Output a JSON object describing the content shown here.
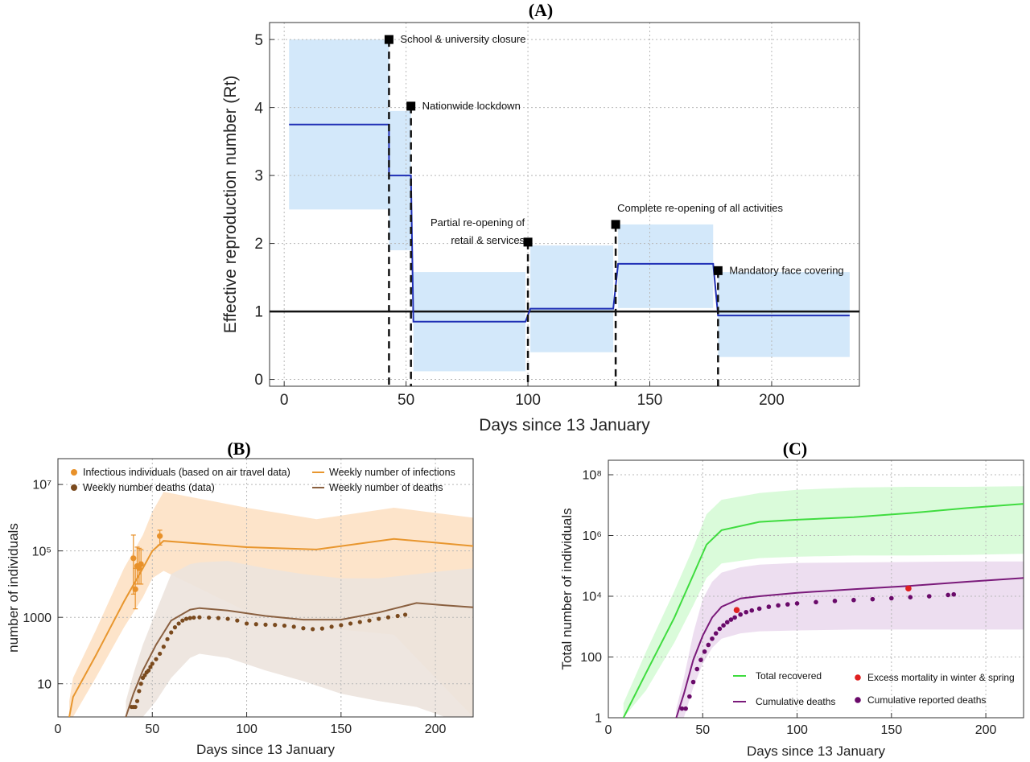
{
  "chart_data": [
    {
      "panel": "(A)",
      "type": "line",
      "xlabel": "Days since 13 January",
      "ylabel": "Effective reproduction number (Rt)",
      "xlim": [
        -6,
        236
      ],
      "ylim": [
        -0.1,
        5.25
      ],
      "xticks": [
        0,
        50,
        100,
        150,
        200
      ],
      "yticks": [
        0,
        1,
        2,
        3,
        4,
        5
      ],
      "grid": true,
      "threshold": 1,
      "colors": {
        "rt": "#1f2fb5",
        "band": "#d3e8fa",
        "threshold": "#111111",
        "markers": "#000000"
      },
      "rt_steps": [
        {
          "x0": 2,
          "x1": 43,
          "rt": 3.75,
          "lo": 2.5,
          "hi": 5.0
        },
        {
          "x0": 43,
          "x1": 52,
          "rt": 3.0,
          "lo": 1.9,
          "hi": 3.95
        },
        {
          "x0": 53,
          "x1": 99,
          "rt": 0.85,
          "lo": 0.12,
          "hi": 1.58
        },
        {
          "x0": 101,
          "x1": 135,
          "rt": 1.04,
          "lo": 0.4,
          "hi": 1.97
        },
        {
          "x0": 137,
          "x1": 176,
          "rt": 1.7,
          "lo": 1.05,
          "hi": 2.28
        },
        {
          "x0": 178,
          "x1": 232,
          "rt": 0.94,
          "lo": 0.33,
          "hi": 1.58
        }
      ],
      "interventions": [
        {
          "day": 43,
          "label_lines": [
            "School & university closure"
          ],
          "marker_y": 5.0,
          "label_pos": "right"
        },
        {
          "day": 52,
          "label_lines": [
            "Nationwide lockdown"
          ],
          "marker_y": 4.02,
          "label_pos": "right"
        },
        {
          "day": 100,
          "label_lines": [
            "Partial re-opening of",
            "retail & services"
          ],
          "marker_y": 2.02,
          "label_pos": "left"
        },
        {
          "day": 136,
          "label_lines": [
            "Complete re-opening of all activities"
          ],
          "marker_y": 2.28,
          "label_pos": "above"
        },
        {
          "day": 178,
          "label_lines": [
            "Mandatory face covering"
          ],
          "marker_y": 1.6,
          "label_pos": "right"
        }
      ]
    },
    {
      "panel": "(B)",
      "type": "line",
      "xlabel": "Days since 13 January",
      "ylabel": "number of individuals",
      "yscale": "log",
      "xlim": [
        0,
        220
      ],
      "ylim": [
        1,
        60000000
      ],
      "xticks": [
        0,
        50,
        100,
        150,
        200
      ],
      "yticks": [
        10,
        1000,
        100000,
        10000000
      ],
      "ytick_labels": [
        "10",
        "1000",
        "10⁵",
        "10⁷"
      ],
      "grid": true,
      "legend_position": "top-left",
      "legend": [
        {
          "label": "Infectious individuals (based on air travel data)",
          "kind": "dot",
          "color": "#e8912a"
        },
        {
          "label": "Weekly number deaths (data)",
          "kind": "dot",
          "color": "#7a4a1e"
        },
        {
          "label": "Weekly number of infections",
          "kind": "line",
          "color": "#e8962e"
        },
        {
          "label": "Weekly number of deaths",
          "kind": "line",
          "color": "#8a6040"
        }
      ],
      "series": [
        {
          "name": "Weekly number of infections",
          "color": "#e8962e",
          "x": [
            6,
            8,
            20,
            35,
            45,
            50,
            56,
            100,
            137,
            178,
            220
          ],
          "y": [
            1,
            4,
            70,
            3000,
            30000,
            100000,
            200000,
            130000,
            110000,
            230000,
            140000
          ],
          "band_lo": [
            1,
            1,
            15,
            500,
            4000,
            15000,
            25000,
            1500,
            500,
            300,
            1
          ],
          "band_hi": [
            3,
            15,
            400,
            30000,
            300000,
            1500000,
            6000000,
            2000000,
            900000,
            2000000,
            1000000
          ]
        },
        {
          "name": "Weekly number of deaths",
          "color": "#8a6040",
          "x": [
            36,
            40,
            45,
            52,
            60,
            70,
            75,
            90,
            110,
            130,
            150,
            170,
            190,
            205,
            220
          ],
          "y": [
            1,
            5,
            25,
            150,
            800,
            1700,
            1900,
            1600,
            1100,
            850,
            850,
            1400,
            2700,
            2300,
            2000
          ],
          "band_lo": [
            1,
            1,
            1,
            3,
            15,
            60,
            80,
            60,
            25,
            12,
            5,
            3,
            2,
            1,
            1
          ],
          "band_hi": [
            3,
            20,
            150,
            1500,
            20000,
            40000,
            45000,
            50000,
            30000,
            20000,
            15000,
            15000,
            20000,
            25000,
            30000
          ]
        }
      ],
      "points": [
        {
          "name": "Infectious individuals (based on air travel data)",
          "color": "#e8912a",
          "x": [
            40,
            41,
            42,
            43,
            44,
            54
          ],
          "y": [
            60000,
            7000,
            35000,
            30000,
            40000,
            280000
          ],
          "err_lo": [
            5000,
            1800,
            10000,
            10000,
            10000,
            150000
          ],
          "err_hi": [
            300000,
            30000,
            130000,
            120000,
            110000,
            420000
          ]
        },
        {
          "name": "Weekly number deaths (data)",
          "color": "#7a4a1e",
          "x": [
            39,
            40,
            41,
            42,
            43,
            44,
            45,
            46,
            47,
            48,
            49,
            50,
            52,
            54,
            56,
            58,
            60,
            62,
            64,
            66,
            68,
            70,
            72,
            75,
            80,
            85,
            90,
            95,
            100,
            105,
            110,
            115,
            120,
            125,
            130,
            135,
            140,
            145,
            150,
            155,
            160,
            165,
            170,
            175,
            180,
            184
          ],
          "y": [
            2,
            2,
            2,
            3,
            6,
            10,
            15,
            18,
            22,
            25,
            32,
            40,
            55,
            80,
            130,
            220,
            350,
            500,
            650,
            800,
            900,
            950,
            980,
            1000,
            980,
            950,
            900,
            800,
            650,
            620,
            600,
            590,
            560,
            520,
            470,
            440,
            460,
            520,
            580,
            650,
            720,
            800,
            900,
            1000,
            1100,
            1200
          ]
        }
      ]
    },
    {
      "panel": "(C)",
      "type": "line",
      "xlabel": "Days since 13 January",
      "ylabel": "Total number of individuals",
      "yscale": "log",
      "xlim": [
        0,
        220
      ],
      "ylim": [
        1,
        300000000
      ],
      "xticks": [
        0,
        50,
        100,
        150,
        200
      ],
      "yticks": [
        1,
        100,
        10000,
        1000000,
        100000000
      ],
      "ytick_labels": [
        "1",
        "100",
        "10⁴",
        "10⁶",
        "10⁸"
      ],
      "grid": true,
      "legend_position": "bottom-right",
      "legend": [
        {
          "label": "Total recovered",
          "kind": "line",
          "color": "#3fdc3f"
        },
        {
          "label": "Excess mortality in winter & spring",
          "kind": "dot",
          "color": "#e02020"
        },
        {
          "label": "Cumulative deaths",
          "kind": "line",
          "color": "#7a1a7a"
        },
        {
          "label": "Cumulative reported deaths",
          "kind": "dot",
          "color": "#6a0a6a"
        }
      ],
      "series": [
        {
          "name": "Total recovered",
          "color": "#3fdc3f",
          "x": [
            8,
            20,
            35,
            45,
            52,
            60,
            80,
            100,
            130,
            160,
            190,
            220
          ],
          "y": [
            1,
            30,
            2000,
            50000,
            500000,
            1500000,
            2800000,
            3300000,
            4000000,
            5500000,
            8000000,
            11000000
          ],
          "band_lo": [
            1,
            8,
            300,
            5000,
            40000,
            120000,
            180000,
            200000,
            220000,
            220000,
            230000,
            250000
          ],
          "band_hi": [
            3,
            150,
            15000,
            400000,
            5000000,
            15000000,
            25000000,
            32000000,
            38000000,
            40000000,
            40000000,
            42000000
          ]
        },
        {
          "name": "Cumulative deaths",
          "color": "#7a1a7a",
          "x": [
            36,
            40,
            45,
            50,
            55,
            60,
            70,
            80,
            100,
            130,
            160,
            190,
            220
          ],
          "y": [
            1,
            6,
            80,
            500,
            2000,
            4500,
            8500,
            10000,
            13000,
            17000,
            22000,
            30000,
            40000
          ],
          "band_lo": [
            1,
            1,
            10,
            60,
            200,
            400,
            600,
            700,
            750,
            800,
            800,
            800,
            800
          ],
          "band_hi": [
            2,
            20,
            600,
            8000,
            30000,
            60000,
            90000,
            110000,
            125000,
            130000,
            135000,
            140000,
            140000
          ]
        }
      ],
      "points": [
        {
          "name": "Excess mortality in winter & spring",
          "color": "#e02020",
          "x": [
            68,
            159
          ],
          "y": [
            3500,
            18000
          ]
        },
        {
          "name": "Cumulative reported deaths",
          "color": "#6a0a6a",
          "x": [
            39,
            41,
            43,
            45,
            47,
            49,
            51,
            53,
            55,
            57,
            59,
            61,
            63,
            65,
            67,
            70,
            73,
            76,
            80,
            85,
            90,
            95,
            100,
            110,
            120,
            130,
            140,
            150,
            160,
            170,
            180,
            183
          ],
          "y": [
            2,
            2,
            5,
            15,
            40,
            80,
            150,
            250,
            400,
            600,
            850,
            1100,
            1400,
            1700,
            2000,
            2500,
            3000,
            3400,
            3900,
            4500,
            5000,
            5400,
            5800,
            6400,
            7000,
            7500,
            8000,
            8600,
            9300,
            10000,
            11000,
            11500
          ]
        }
      ]
    }
  ]
}
